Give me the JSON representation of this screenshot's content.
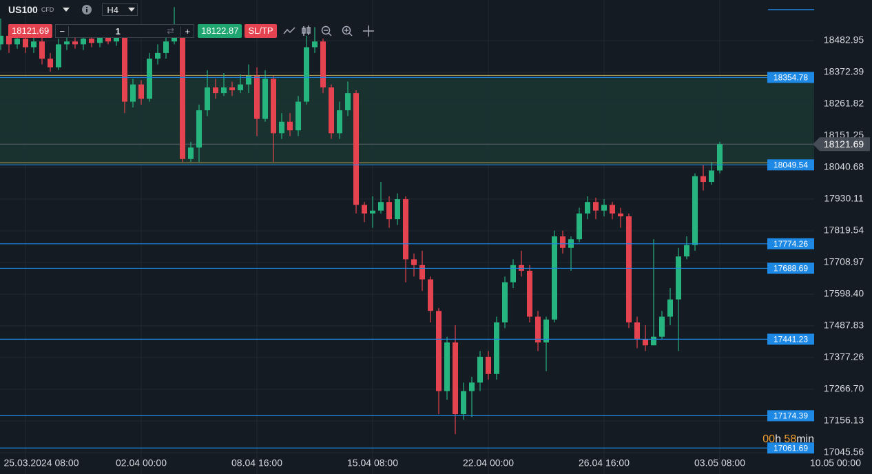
{
  "toolbar": {
    "symbol": "US100",
    "symbol_kind": "CFD",
    "timeframe": "H4",
    "sell_price": "18121.69",
    "minus": "−",
    "quantity": "1",
    "plus": "+",
    "buy_price": "18122.87",
    "sl_tp": "SL/TP"
  },
  "chart_data": {
    "type": "candlestick",
    "categories": [
      null,
      null,
      null,
      "25.03.2024 08:00",
      null,
      null,
      null,
      null,
      null,
      null,
      null,
      null,
      null,
      null,
      null,
      null,
      null,
      "02.04 00:00",
      null,
      null,
      null,
      null,
      null,
      null,
      null,
      null,
      null,
      null,
      null,
      null,
      null,
      "08.04 16:00",
      null,
      null,
      null,
      null,
      null,
      null,
      null,
      null,
      null,
      null,
      null,
      null,
      null,
      "15.04 08:00",
      null,
      null,
      null,
      null,
      null,
      null,
      null,
      null,
      null,
      null,
      null,
      null,
      null,
      "22.04 00:00",
      null,
      null,
      null,
      null,
      null,
      null,
      null,
      null,
      null,
      null,
      null,
      null,
      null,
      "26.04 16:00",
      null,
      null,
      null,
      null,
      null,
      null,
      null,
      null,
      null,
      null,
      null,
      null,
      null,
      "03.05 08:00",
      null,
      null,
      null,
      null,
      null,
      null,
      null,
      null,
      null,
      null,
      null,
      null,
      null,
      "10.05 00:00"
    ],
    "open": [
      18470,
      18500,
      18470,
      18490,
      18460,
      18480,
      18420,
      18390,
      18470,
      18480,
      18470,
      18490,
      18475,
      18500,
      18480,
      18495,
      18270,
      18330,
      18280,
      18420,
      18440,
      18480,
      18510,
      18070,
      18110,
      18240,
      18320,
      18300,
      18320,
      18310,
      18330,
      18360,
      18210,
      18350,
      18160,
      18200,
      18170,
      18270,
      18460,
      18480,
      18320,
      18160,
      18240,
      18300,
      17910,
      17880,
      17890,
      17920,
      17860,
      17930,
      17720,
      17700,
      17650,
      17540,
      17260,
      17430,
      17180,
      17260,
      17290,
      17380,
      17320,
      17500,
      17640,
      17700,
      17680,
      17520,
      17430,
      17510,
      17800,
      17760,
      17790,
      17880,
      17920,
      17890,
      17910,
      17880,
      17870,
      17500,
      17440,
      17420,
      17450,
      17520,
      17580,
      17730,
      17770,
      18010,
      17990,
      18030,
      null,
      null,
      null,
      null,
      null,
      null,
      null,
      null,
      null,
      null,
      null,
      null,
      null,
      null
    ],
    "high": [
      18560,
      18520,
      18510,
      18530,
      18500,
      18500,
      18440,
      18490,
      18510,
      18500,
      18510,
      18520,
      18530,
      18540,
      18520,
      18500,
      18350,
      18345,
      18440,
      18470,
      18500,
      18600,
      18530,
      18130,
      18260,
      18380,
      18350,
      18370,
      18340,
      18365,
      18400,
      18390,
      18380,
      18360,
      18230,
      18230,
      18290,
      18500,
      18530,
      18490,
      18330,
      18270,
      18340,
      18310,
      17920,
      17940,
      17990,
      17940,
      17950,
      17940,
      17740,
      17750,
      17660,
      17550,
      17450,
      17490,
      17290,
      17310,
      17400,
      17400,
      17520,
      17660,
      17720,
      17750,
      17700,
      17540,
      17520,
      17820,
      17820,
      17800,
      17900,
      17940,
      17935,
      17930,
      17920,
      17900,
      17880,
      17520,
      17490,
      17790,
      17540,
      17620,
      17760,
      17800,
      18020,
      18050,
      18060,
      18130,
      null,
      null,
      null,
      null,
      null,
      null,
      null,
      null,
      null,
      null,
      null,
      null,
      null,
      null
    ],
    "low": [
      18450,
      18440,
      18455,
      18440,
      18440,
      18400,
      18375,
      18380,
      18450,
      18455,
      18450,
      18460,
      18460,
      18470,
      18465,
      18230,
      18250,
      18260,
      18270,
      18400,
      18420,
      18470,
      18060,
      18060,
      18060,
      18220,
      18280,
      18290,
      18290,
      18300,
      18300,
      18150,
      18200,
      18060,
      18140,
      18150,
      18150,
      18260,
      18440,
      18300,
      18140,
      18140,
      18220,
      17880,
      17850,
      17830,
      17880,
      17830,
      17840,
      17640,
      17660,
      17610,
      17500,
      17180,
      17230,
      17110,
      17160,
      17170,
      17260,
      17300,
      17300,
      17480,
      17620,
      17660,
      17500,
      17400,
      17330,
      17500,
      17740,
      17680,
      17780,
      17860,
      17860,
      17870,
      17860,
      17830,
      17480,
      17410,
      17400,
      17420,
      17440,
      17490,
      17400,
      17720,
      17750,
      17960,
      17980,
      18020,
      null,
      null,
      null,
      null,
      null,
      null,
      null,
      null,
      null,
      null,
      null,
      null,
      null,
      null
    ],
    "close": [
      18500,
      18470,
      18490,
      18460,
      18480,
      18420,
      18390,
      18470,
      18480,
      18470,
      18490,
      18475,
      18500,
      18480,
      18495,
      18270,
      18330,
      18280,
      18420,
      18440,
      18480,
      18510,
      18070,
      18110,
      18240,
      18320,
      18300,
      18320,
      18310,
      18330,
      18360,
      18210,
      18350,
      18160,
      18200,
      18170,
      18270,
      18460,
      18480,
      18320,
      18160,
      18240,
      18300,
      17910,
      17880,
      17890,
      17920,
      17860,
      17930,
      17720,
      17700,
      17650,
      17540,
      17260,
      17430,
      17180,
      17260,
      17290,
      17380,
      17320,
      17500,
      17640,
      17700,
      17680,
      17520,
      17430,
      17510,
      17800,
      17760,
      17790,
      17880,
      17920,
      17890,
      17910,
      17880,
      17870,
      17500,
      17440,
      17420,
      17450,
      17520,
      17580,
      17730,
      17770,
      18010,
      17990,
      18030,
      18121.69,
      null,
      null,
      null,
      null,
      null,
      null,
      null,
      null,
      null,
      null,
      null,
      null,
      null,
      null
    ],
    "up_color": "#26b47f",
    "down_color": "#e5434f",
    "ylim": [
      16971.0,
      18624.77
    ],
    "yticks": [
      18482.95,
      18372.39,
      18261.82,
      18151.25,
      18040.68,
      17930.11,
      17819.54,
      {
        "value": 17708.97,
        "label": "17708.97"
      },
      {
        "value": 17598.4,
        "label": "17598.40"
      },
      17487.83,
      17377.26,
      {
        "value": 17266.7,
        "label": "17266.70"
      },
      17156.13,
      17045.56
    ],
    "levels": [
      18354.78,
      18049.54,
      17774.26,
      17688.69,
      17441.23,
      17174.39,
      17061.69
    ],
    "level_color": "#1e88e5",
    "current_price": 18121.69,
    "countdown": {
      "hours": "00",
      "hours_unit": "h",
      "minutes": "58",
      "minutes_unit": "min"
    },
    "grid": true
  }
}
